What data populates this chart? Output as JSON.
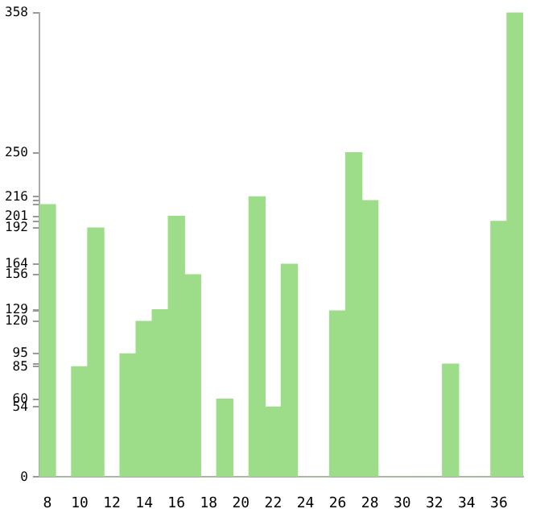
{
  "chart_data": {
    "type": "bar",
    "categories": [
      "8",
      null,
      "10",
      null,
      "12",
      null,
      "14",
      null,
      "16",
      null,
      "18",
      null,
      "20",
      null,
      "22",
      null,
      "24",
      null,
      "26",
      null,
      "28",
      null,
      "30",
      null,
      "32",
      null,
      "34",
      null,
      "36",
      null
    ],
    "values": [
      210,
      0,
      85,
      192,
      0,
      95,
      120,
      129,
      201,
      156,
      0,
      60,
      0,
      216,
      54,
      164,
      0,
      0,
      128,
      250,
      213,
      0,
      0,
      0,
      0,
      87,
      0,
      0,
      197,
      358
    ],
    "color": "#9ddc88",
    "ylim": [
      0,
      358
    ],
    "yticks": [
      0,
      54,
      60,
      85,
      {
        "value": 87,
        "label": null
      },
      95,
      120,
      {
        "value": 128,
        "label": null
      },
      129,
      156,
      164,
      192,
      {
        "value": 197,
        "label": null
      },
      201,
      {
        "value": 210,
        "label": null
      },
      {
        "value": 213,
        "label": null
      },
      216,
      250,
      358
    ],
    "grid": false,
    "legend": false
  }
}
